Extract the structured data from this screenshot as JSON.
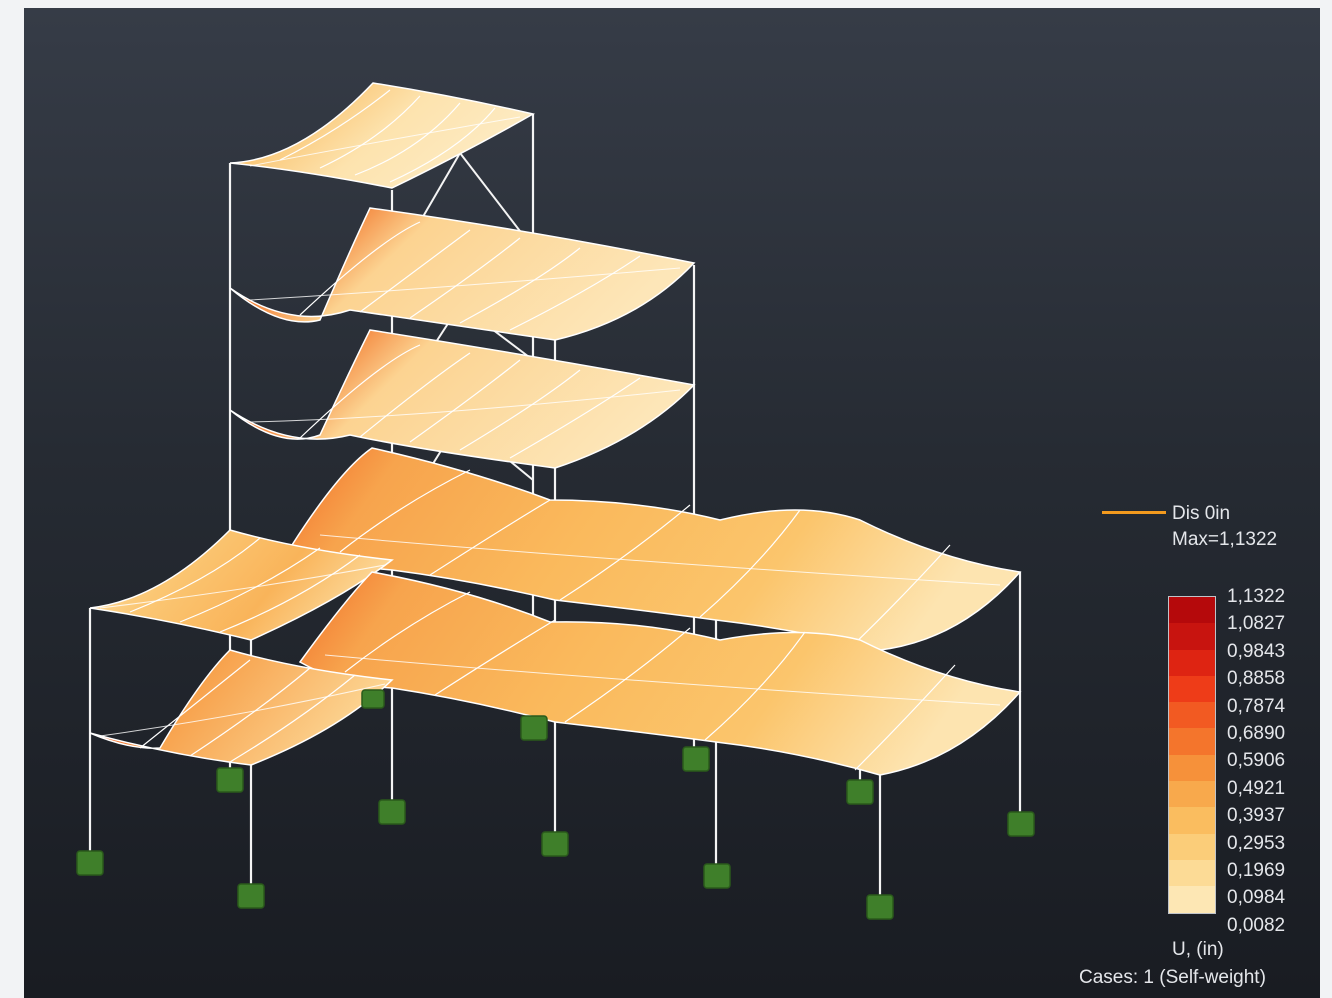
{
  "legend": {
    "line_label": "Dis  0in",
    "max_label": "Max=1,1322",
    "line_color": "#f39a1e",
    "scale_values": [
      "1,1322",
      "1,0827",
      "0,9843",
      "0,8858",
      "0,7874",
      "0,6890",
      "0,5906",
      "0,4921",
      "0,3937",
      "0,2953",
      "0,1969",
      "0,0984",
      "0,0082"
    ],
    "scale_colors": [
      "#b5090b",
      "#c8140f",
      "#de2412",
      "#ee3c18",
      "#f25a22",
      "#f4752c",
      "#f6913a",
      "#f8a94c",
      "#fabd5f",
      "#fbcd79",
      "#fcdb96",
      "#fde7b4",
      "#fef2d2"
    ],
    "unit_label": "U, (in)",
    "cases_label": "Cases: 1 (Self-weight)"
  },
  "colors": {
    "background": "#262b33",
    "frame_lines": "#f4f4f4",
    "support": "#3f7f2a"
  }
}
